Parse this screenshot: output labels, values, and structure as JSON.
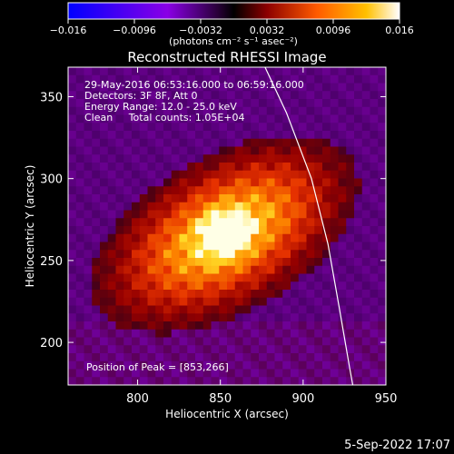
{
  "colorbar": {
    "ticks": [
      "−0.016",
      "−0.0096",
      "−0.0032",
      "0.0032",
      "0.0096",
      "0.016"
    ],
    "unit_label": "(photons cm⁻² s⁻¹ asec⁻²)",
    "range": [
      -0.016,
      0.016
    ]
  },
  "chart_data": {
    "type": "heatmap",
    "title": "Reconstructed RHESSI Image",
    "xlabel": "Heliocentric X (arcsec)",
    "ylabel": "Heliocentric Y (arcsec)",
    "xlim": [
      758,
      950
    ],
    "ylim": [
      174,
      368
    ],
    "x_ticks": [
      800,
      850,
      900,
      950
    ],
    "y_ticks": [
      200,
      250,
      300,
      350
    ],
    "peak": {
      "x": 853,
      "y": 266
    },
    "limb_curve": [
      [
        877,
        368
      ],
      [
        890,
        340
      ],
      [
        905,
        300
      ],
      [
        915,
        260
      ],
      [
        922,
        220
      ],
      [
        928,
        185
      ],
      [
        930,
        174
      ]
    ],
    "annotations": [
      "29-May-2016 06:53:16.000 to 06:59:16.000",
      "Detectors: 3F 8F, Att 0",
      "Energy Range: 12.0 - 25.0 keV",
      "Clean     Total counts: 1.05E+04"
    ],
    "peak_label": "Position of Peak = [853,266]",
    "colormap": "purple-red-orange-yellow-white"
  },
  "footer": {
    "timestamp": "5-Sep-2022 17:07"
  }
}
